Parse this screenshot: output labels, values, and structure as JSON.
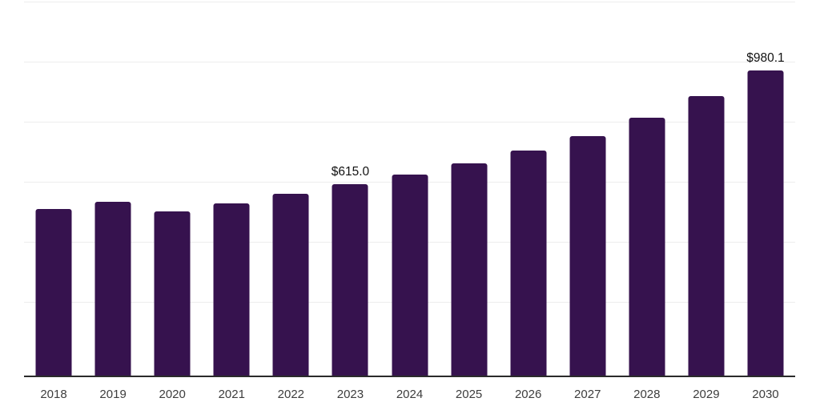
{
  "chart_data": {
    "type": "bar",
    "title": "",
    "xlabel": "",
    "ylabel": "",
    "categories": [
      "2018",
      "2019",
      "2020",
      "2021",
      "2022",
      "2023",
      "2024",
      "2025",
      "2026",
      "2027",
      "2028",
      "2029",
      "2030"
    ],
    "values": [
      535,
      560,
      527,
      555,
      584,
      615.0,
      647,
      683,
      722,
      770,
      827,
      898,
      980.1
    ],
    "data_labels": [
      "",
      "",
      "",
      "",
      "",
      "$615.0",
      "",
      "",
      "",
      "",
      "",
      "",
      "$980.1"
    ],
    "ylim": [
      0,
      1200
    ],
    "grid": "horizontal gridlines, unlabeled y-axis",
    "legend": "none",
    "colors": {
      "bar": "#36124e",
      "axis_line": "#2b2b2b",
      "gridline": "#ededed",
      "data_label_text": "#111111",
      "tick_label_text": "#3d3d3d",
      "background": "#ffffff"
    }
  }
}
